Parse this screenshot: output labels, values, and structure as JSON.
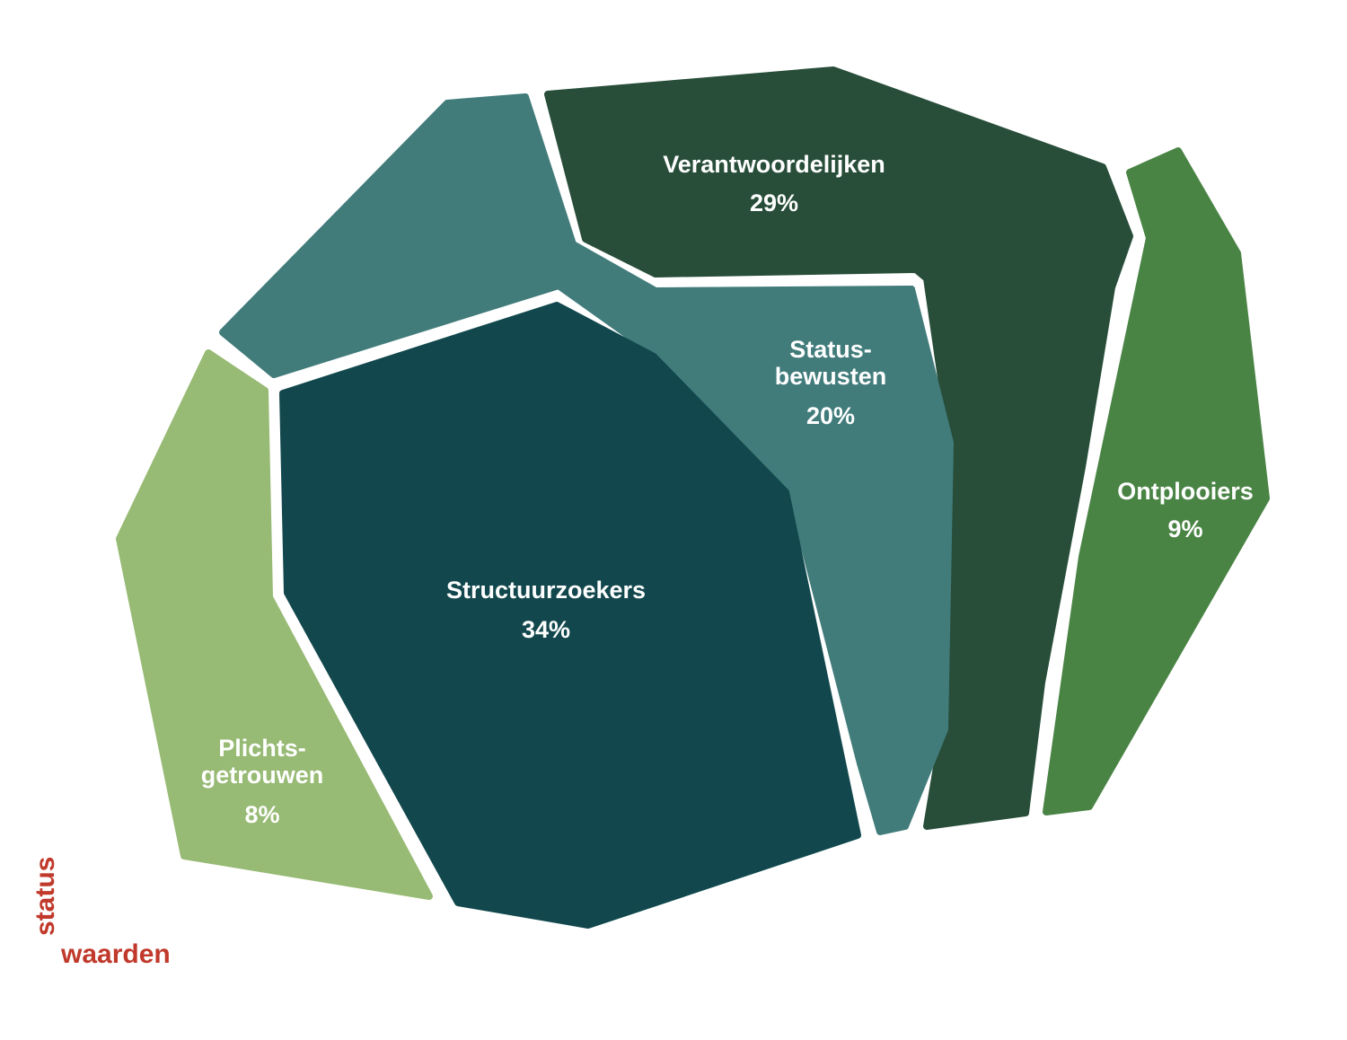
{
  "chart_data": {
    "type": "voronoi-treemap",
    "segments": [
      {
        "name": "Verantwoordelijken",
        "value": 29,
        "value_label": "29%",
        "color": "#284e3a"
      },
      {
        "name": "Status-bewusten",
        "label_lines": [
          "Status-",
          "bewusten"
        ],
        "value": 20,
        "value_label": "20%",
        "color": "#417c7b"
      },
      {
        "name": "Ontplooiers",
        "value": 9,
        "value_label": "9%",
        "color": "#4a8445"
      },
      {
        "name": "Structuurzoekers",
        "value": 34,
        "value_label": "34%",
        "color": "#12484d"
      },
      {
        "name": "Plichtsgetrouwen",
        "label_lines": [
          "Plichts-",
          "getrouwen"
        ],
        "value": 8,
        "value_label": "8%",
        "color": "#97ba74"
      }
    ],
    "axes": {
      "vertical": "status",
      "horizontal": "waarden",
      "color": "#c0392b"
    }
  }
}
